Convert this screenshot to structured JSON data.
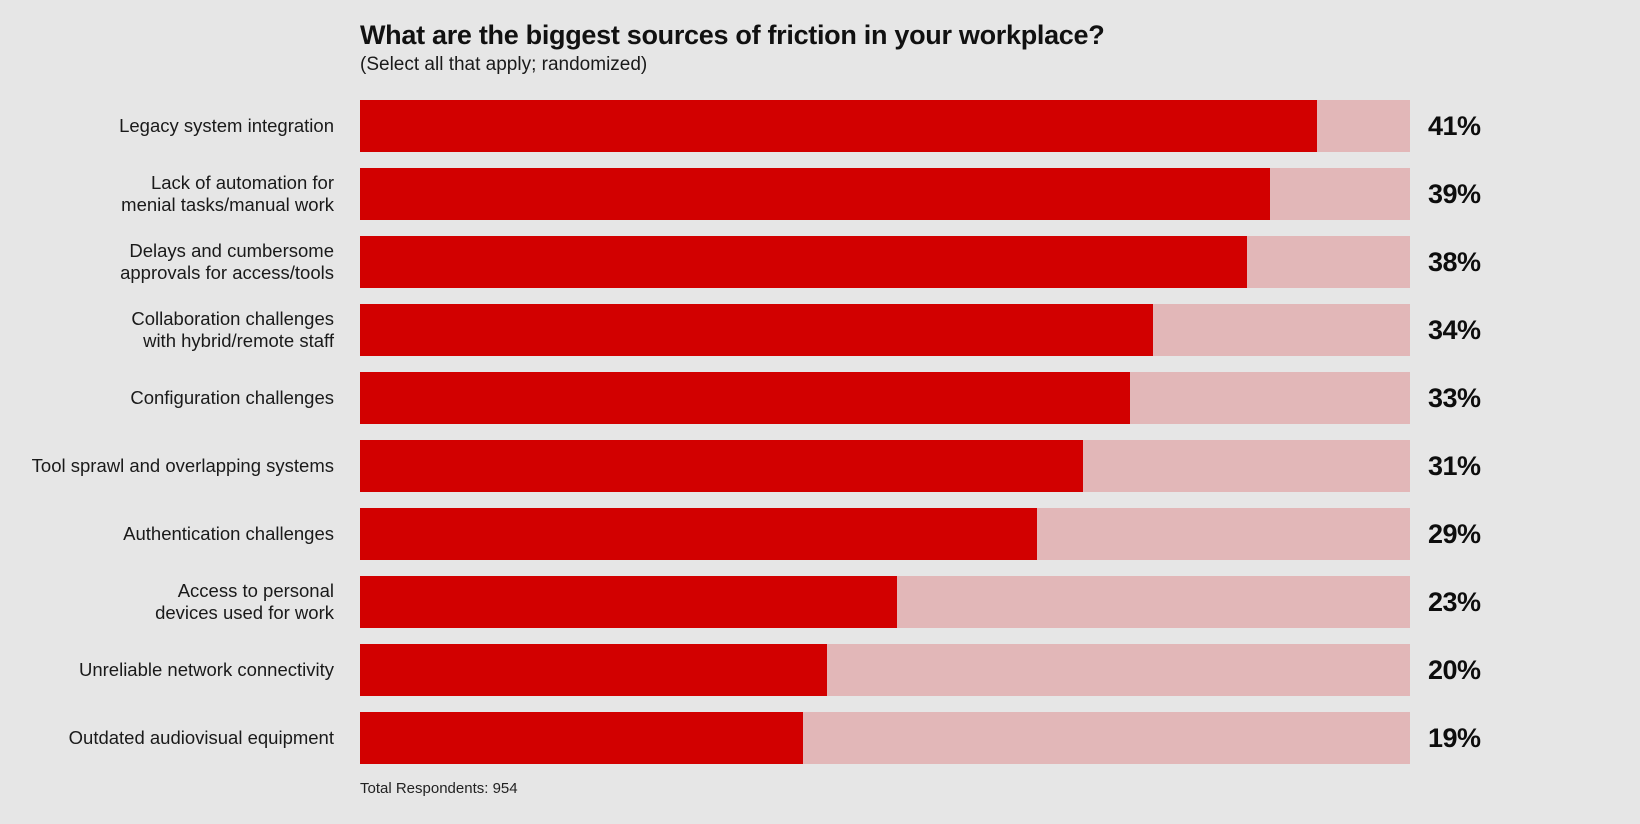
{
  "chart_data": {
    "type": "bar",
    "orientation": "horizontal",
    "title": "What are the biggest sources of friction in your workplace?",
    "subtitle": "(Select all that apply; randomized)",
    "categories": [
      [
        "Legacy system integration"
      ],
      [
        "Lack of automation for",
        "menial tasks/manual work"
      ],
      [
        "Delays and cumbersome",
        "approvals for access/tools"
      ],
      [
        "Collaboration challenges",
        "with hybrid/remote staff"
      ],
      [
        "Configuration challenges"
      ],
      [
        "Tool sprawl and overlapping systems"
      ],
      [
        "Authentication challenges"
      ],
      [
        "Access to personal",
        "devices used for work"
      ],
      [
        "Unreliable network connectivity"
      ],
      [
        "Outdated audiovisual equipment"
      ]
    ],
    "values": [
      41,
      39,
      38,
      34,
      33,
      31,
      29,
      23,
      20,
      19
    ],
    "value_labels": [
      "41%",
      "39%",
      "38%",
      "34%",
      "33%",
      "31%",
      "29%",
      "23%",
      "20%",
      "19%"
    ],
    "xlim": [
      0,
      45
    ],
    "grid": false,
    "legend": "none",
    "footnote": "Total Respondents: 954",
    "colors": {
      "bar": "#d20000",
      "track": "#e2b7b8",
      "background": "#e6e6e6"
    }
  }
}
